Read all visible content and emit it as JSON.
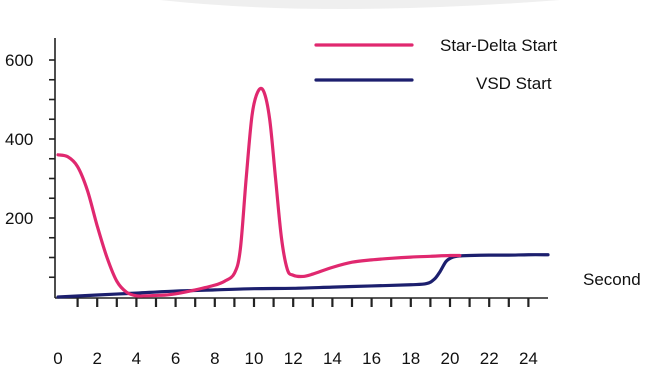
{
  "chart_data": {
    "type": "line",
    "title": "",
    "xlabel": "Second",
    "ylabel": "",
    "xlim": [
      0,
      25
    ],
    "ylim": [
      0,
      650
    ],
    "x_ticks": [
      0,
      2,
      4,
      6,
      8,
      10,
      12,
      14,
      16,
      18,
      20,
      22,
      24
    ],
    "y_ticks": [
      200,
      400,
      600
    ],
    "grid": false,
    "legend_position": "top-right",
    "series": [
      {
        "name": "Star-Delta Start",
        "color": "#e0286f",
        "x": [
          0,
          0.5,
          1,
          1.5,
          2,
          2.5,
          3,
          3.5,
          4,
          4.5,
          5,
          5.5,
          6,
          7,
          8,
          8.5,
          9,
          9.3,
          9.6,
          9.9,
          10.2,
          10.5,
          10.8,
          11.1,
          11.4,
          11.7,
          12,
          12.5,
          13,
          14,
          15,
          16,
          17,
          18,
          19,
          20,
          20.5
        ],
        "y": [
          360,
          355,
          330,
          270,
          180,
          100,
          40,
          12,
          3,
          3,
          4,
          5,
          8,
          18,
          30,
          40,
          60,
          120,
          300,
          460,
          520,
          520,
          450,
          300,
          150,
          70,
          55,
          52,
          58,
          75,
          88,
          94,
          98,
          101,
          103,
          105,
          105
        ]
      },
      {
        "name": "VSD Start",
        "color": "#1c1f6e",
        "x": [
          0,
          2,
          4,
          6,
          8,
          10,
          12,
          14,
          16,
          18,
          18.8,
          19.2,
          19.5,
          19.8,
          20.1,
          20.5,
          21,
          22,
          23,
          24,
          25
        ],
        "y": [
          0,
          5,
          10,
          15,
          18,
          21,
          22,
          25,
          28,
          31,
          34,
          45,
          65,
          90,
          100,
          104,
          105,
          106,
          106,
          107,
          107
        ]
      }
    ]
  }
}
